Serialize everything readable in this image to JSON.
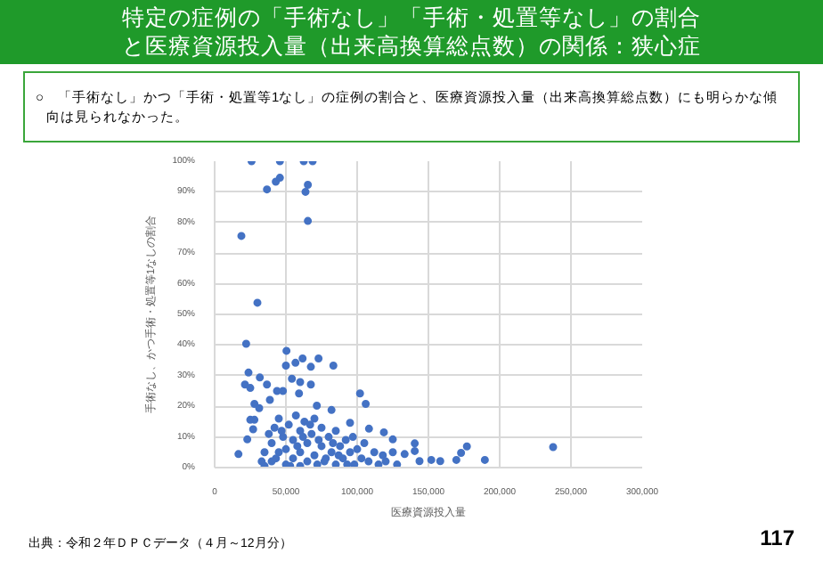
{
  "chart_data": {
    "type": "scatter",
    "title": "特定の症例の「手術なし」「手術・処置等なし」の割合と医療資源投入量（出来高換算総点数）の関係：狭心症",
    "subtitle": "○　「手術なし」かつ「手術・処置等1なし」の症例の割合と、医療資源投入量（出来高換算総点数）にも明らかな傾向は見られなかった。",
    "xlabel": "医療資源投入量",
    "ylabel": "手術なし、かつ手術・処置等1なしの割合",
    "annotations": [
      "出典：令和２年ＤＰＣデータ（４月～12月分）",
      "117"
    ],
    "xlim": [
      0,
      300000
    ],
    "xticks": [
      0,
      {
        "value": 50000,
        "label": "50,000"
      },
      {
        "value": 100000,
        "label": "100,000"
      },
      {
        "value": 150000,
        "label": "150,000"
      },
      {
        "value": 200000,
        "label": "200,000"
      },
      {
        "value": 250000,
        "label": "250,000"
      },
      {
        "value": 300000,
        "label": "300,000"
      }
    ],
    "ylim": [
      0,
      100
    ],
    "yticks": [
      {
        "value": 0,
        "label": "0%"
      },
      {
        "value": 10,
        "label": "10%"
      },
      {
        "value": 20,
        "label": "20%"
      },
      {
        "value": 30,
        "label": "30%"
      },
      {
        "value": 40,
        "label": "40%"
      },
      {
        "value": 50,
        "label": "50%"
      },
      {
        "value": 60,
        "label": "60%"
      },
      {
        "value": 70,
        "label": "70%"
      },
      {
        "value": 80,
        "label": "80%"
      },
      {
        "value": 90,
        "label": "90%"
      },
      {
        "value": 100,
        "label": "100%"
      }
    ],
    "grid": true,
    "marker": "circle",
    "series": [
      {
        "color": "#4472c4",
        "x": [
          25900,
          45800,
          62500,
          68750,
          36700,
          42900,
          45800,
          63750,
          65400,
          65400,
          18750,
          30000,
          22100,
          50400,
          61700,
          72900,
          56700,
          50000,
          67500,
          83300,
          23750,
          31700,
          54200,
          21250,
          25000,
          36700,
          60000,
          67500,
          43750,
          47900,
          102000,
          59200,
          38750,
          106000,
          27900,
          31250,
          71700,
          82000,
          25000,
          27900,
          95000,
          108300,
          27000,
          118750,
          125000,
          22900,
          140400,
          140400,
          133300,
          16700,
          189600,
          177000,
          172900,
          169600,
          237500,
          152000,
          158300,
          143750,
          35000,
          40000,
          40000,
          42000,
          45000,
          45000,
          48000,
          50000,
          50000,
          52000,
          55000,
          55000,
          57000,
          60000,
          60000,
          60000,
          63000,
          65000,
          65000,
          68000,
          70000,
          70000,
          72000,
          75000,
          75000,
          78000,
          80000,
          82000,
          85000,
          85000,
          88000,
          90000,
          92000,
          95000,
          98000,
          100000,
          103000,
          105000,
          108000,
          112000,
          115000,
          118000,
          120000,
          125000,
          128000,
          38000,
          43000,
          58000,
          62000,
          67000,
          73000,
          77000,
          83000,
          87000,
          93000,
          97000,
          35000,
          33000,
          47000,
          53000
        ],
        "values": [
          100,
          100,
          100,
          100,
          90.8,
          93.3,
          94.6,
          90,
          92.3,
          80.5,
          75.6,
          53.8,
          40.4,
          38.1,
          35.6,
          35.6,
          34.2,
          33.3,
          32.9,
          33.3,
          31,
          29.4,
          29,
          27.1,
          26,
          27.1,
          27.9,
          27.1,
          25,
          25,
          24.2,
          24.2,
          22.1,
          20.8,
          20.8,
          19.4,
          20.2,
          18.8,
          15.6,
          15.6,
          14.6,
          12.7,
          12.5,
          11.5,
          9.2,
          9.2,
          7.9,
          5.4,
          4.4,
          4.4,
          2.5,
          6.9,
          4.8,
          2.5,
          6.7,
          2.5,
          2.1,
          2.1,
          0.5,
          2,
          8,
          13,
          5,
          16,
          10,
          1,
          6,
          14,
          3,
          9,
          17,
          0.5,
          5,
          12,
          15,
          2,
          8,
          11,
          4,
          16,
          1,
          7,
          13,
          3,
          10,
          5,
          1,
          12,
          7,
          3,
          9,
          5,
          1,
          6,
          3,
          8,
          2,
          5,
          1,
          4,
          2,
          5,
          1,
          11,
          3,
          7,
          10,
          14,
          9,
          2,
          8,
          4,
          1,
          10,
          5,
          2,
          12,
          0.5
        ]
      }
    ]
  }
}
